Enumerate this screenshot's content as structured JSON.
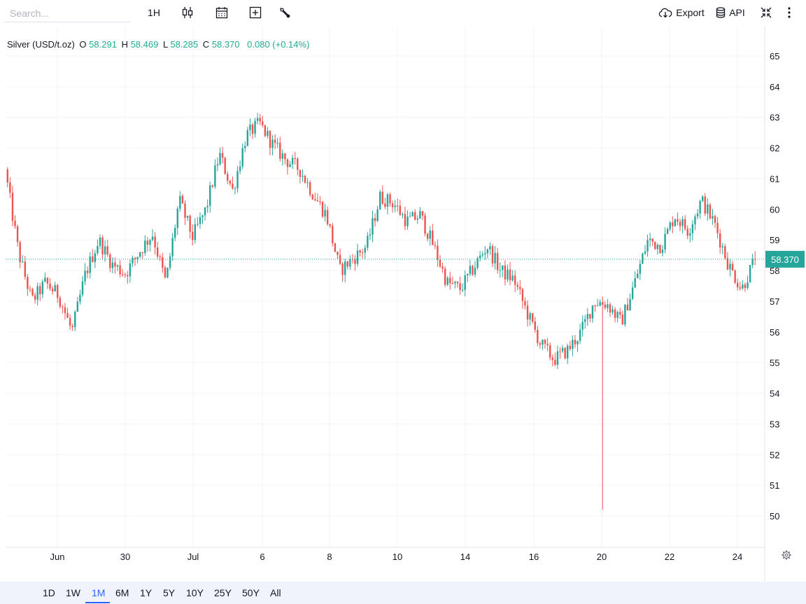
{
  "toolbar": {
    "search_placeholder": "Search...",
    "interval_label": "1H",
    "export_label": "Export",
    "api_label": "API"
  },
  "legend": {
    "symbol": "Silver (USD/t.oz)",
    "o_label": "O",
    "o_value": "58.291",
    "h_label": "H",
    "h_value": "58.469",
    "l_label": "L",
    "l_value": "58.285",
    "c_label": "C",
    "c_value": "58.370",
    "change": "0.080 (+0.14%)"
  },
  "price_tag": "58.370",
  "colors": {
    "up": "#26a69a",
    "down": "#ef5350",
    "accent": "#2962ff",
    "grid": "#f0f3fa"
  },
  "ranges": [
    "1D",
    "1W",
    "1M",
    "6M",
    "1Y",
    "5Y",
    "10Y",
    "25Y",
    "50Y",
    "All"
  ],
  "active_range": "1M",
  "chart_data": {
    "type": "candlestick",
    "title": "Silver (USD/t.oz)",
    "interval": "1H",
    "ylim": [
      49,
      65.5
    ],
    "y_ticks": [
      50,
      51,
      52,
      53,
      54,
      55,
      56,
      57,
      58,
      59,
      60,
      61,
      62,
      63,
      64,
      65
    ],
    "x_ticks": [
      "Jun",
      "30",
      "Jul",
      "6",
      "8",
      "10",
      "14",
      "16",
      "20",
      "22",
      "24"
    ],
    "last_price": 58.37,
    "series": [
      {
        "name": "Silver (USD/t.oz)",
        "approx_close_path": [
          {
            "label": "start",
            "value": 61.3
          },
          {
            "label": "",
            "value": 58.6
          },
          {
            "label": "",
            "value": 57.0
          },
          {
            "label": "",
            "value": 57.6
          },
          {
            "label": "Jun",
            "value": 57.2
          },
          {
            "label": "",
            "value": 56.0
          },
          {
            "label": "",
            "value": 57.9
          },
          {
            "label": "",
            "value": 59.0
          },
          {
            "label": "",
            "value": 58.2
          },
          {
            "label": "30",
            "value": 57.9
          },
          {
            "label": "",
            "value": 58.6
          },
          {
            "label": "",
            "value": 59.2
          },
          {
            "label": "",
            "value": 57.6
          },
          {
            "label": "",
            "value": 60.3
          },
          {
            "label": "Jul",
            "value": 59.1
          },
          {
            "label": "",
            "value": 60.0
          },
          {
            "label": "",
            "value": 61.8
          },
          {
            "label": "",
            "value": 60.6
          },
          {
            "label": "",
            "value": 62.4
          },
          {
            "label": "6",
            "value": 62.8
          },
          {
            "label": "",
            "value": 62.1
          },
          {
            "label": "",
            "value": 61.6
          },
          {
            "label": "",
            "value": 61.3
          },
          {
            "label": "",
            "value": 60.5
          },
          {
            "label": "8",
            "value": 59.8
          },
          {
            "label": "",
            "value": 58.0
          },
          {
            "label": "",
            "value": 58.4
          },
          {
            "label": "",
            "value": 58.8
          },
          {
            "label": "",
            "value": 60.4
          },
          {
            "label": "10",
            "value": 60.2
          },
          {
            "label": "",
            "value": 59.6
          },
          {
            "label": "",
            "value": 59.8
          },
          {
            "label": "",
            "value": 58.8
          },
          {
            "label": "",
            "value": 57.6
          },
          {
            "label": "14",
            "value": 57.4
          },
          {
            "label": "",
            "value": 58.1
          },
          {
            "label": "",
            "value": 58.8
          },
          {
            "label": "",
            "value": 58.0
          },
          {
            "label": "16",
            "value": 57.7
          },
          {
            "label": "",
            "value": 56.6
          },
          {
            "label": "",
            "value": 55.6
          },
          {
            "label": "",
            "value": 55.1
          },
          {
            "label": "",
            "value": 55.4
          },
          {
            "label": "20",
            "value": 56.0
          },
          {
            "label": "",
            "value": 57.0
          },
          {
            "label": "",
            "value": 56.9
          },
          {
            "label": "",
            "value": 56.3
          },
          {
            "label": "",
            "value": 57.6
          },
          {
            "label": "",
            "value": 59.0
          },
          {
            "label": "22",
            "value": 58.8
          },
          {
            "label": "",
            "value": 59.8
          },
          {
            "label": "",
            "value": 59.3
          },
          {
            "label": "",
            "value": 60.3
          },
          {
            "label": "",
            "value": 59.5
          },
          {
            "label": "",
            "value": 58.2
          },
          {
            "label": "24",
            "value": 57.4
          },
          {
            "label": "end",
            "value": 58.37
          }
        ]
      }
    ],
    "grid": true,
    "crosshair_price": 58.37
  }
}
